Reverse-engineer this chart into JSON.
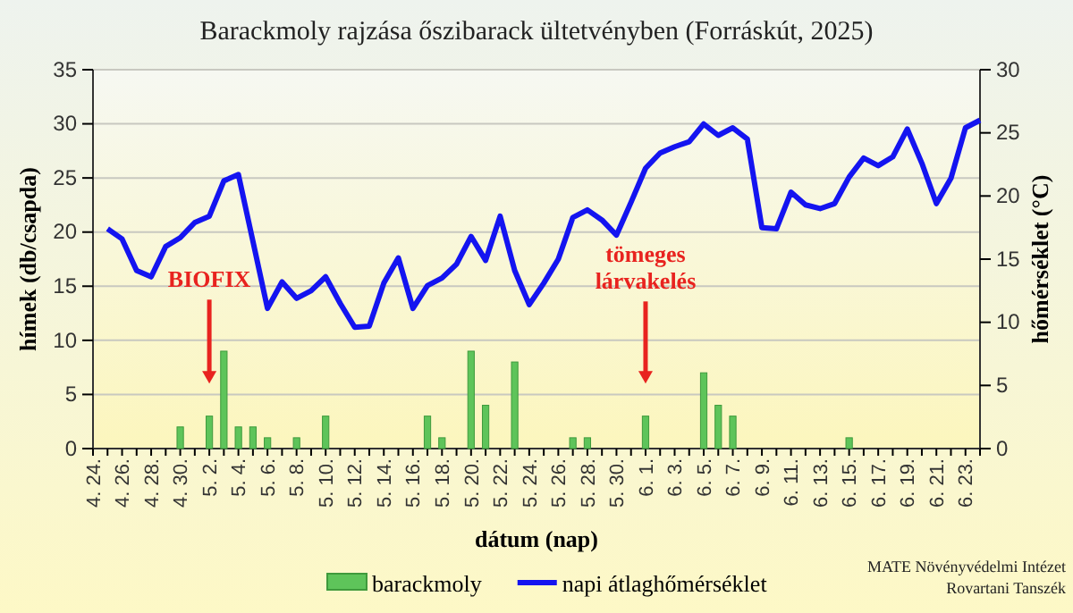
{
  "chart_data": {
    "type": "bar",
    "title": "Barackmoly rajzása őszibarack ültetvényben (Forráskút, 2025)",
    "xlabel": "dátum (nap)",
    "ylabel": "hímek (db/csapda)",
    "y2label": "hőmérséklet (°C)",
    "categories": [
      "4. 24.",
      null,
      "4. 26.",
      null,
      "4. 28.",
      null,
      "4. 30.",
      null,
      "5. 2.",
      null,
      "5. 4.",
      null,
      "5. 6.",
      null,
      "5. 8.",
      null,
      "5. 10.",
      null,
      "5. 12.",
      null,
      "5. 14.",
      null,
      "5. 16.",
      null,
      "5. 18.",
      null,
      "5. 20.",
      null,
      "5. 22.",
      null,
      "5. 24.",
      null,
      "5. 26.",
      null,
      "5. 28.",
      null,
      "5. 30.",
      null,
      "6. 1.",
      null,
      "6. 3.",
      null,
      "6. 5.",
      null,
      "6. 7.",
      null,
      "6. 9.",
      null,
      "6. 11.",
      null,
      "6. 13.",
      null,
      "6. 15.",
      null,
      "6. 17.",
      null,
      "6. 19.",
      null,
      "6. 21.",
      null,
      "6. 23.",
      null
    ],
    "series": [
      {
        "name": "barackmoly",
        "color": "#5ec45a",
        "values": [
          0,
          0,
          0,
          0,
          0,
          0,
          2,
          0,
          3,
          9,
          2,
          2,
          1,
          0,
          1,
          0,
          3,
          0,
          0,
          0,
          0,
          0,
          0,
          3,
          1,
          0,
          9,
          4,
          0,
          8,
          0,
          0,
          0,
          1,
          1,
          0,
          0,
          0,
          3,
          0,
          0,
          0,
          7,
          4,
          3,
          0,
          0,
          0,
          0,
          0,
          0,
          0,
          1,
          0,
          0,
          0,
          0,
          0,
          0,
          0,
          0,
          0
        ]
      },
      {
        "name": "napi átlaghőmérséklet",
        "type": "line",
        "axis": "y2",
        "color": "#1414f0",
        "values": [
          null,
          17.4,
          16.6,
          14.1,
          13.6,
          16.0,
          16.7,
          17.9,
          18.4,
          21.2,
          21.7,
          16.4,
          11.1,
          13.2,
          11.9,
          12.5,
          13.6,
          11.5,
          9.6,
          9.7,
          13.1,
          15.1,
          11.1,
          12.9,
          13.5,
          14.6,
          16.8,
          14.9,
          18.4,
          14.1,
          11.4,
          13.1,
          15.0,
          18.3,
          18.9,
          18.1,
          16.9,
          19.5,
          22.2,
          23.4,
          23.9,
          24.3,
          25.7,
          24.8,
          25.4,
          24.5,
          17.5,
          17.4,
          20.3,
          19.3,
          19.0,
          19.4,
          21.5,
          23.0,
          22.4,
          23.1,
          25.3,
          22.6,
          19.4,
          21.4,
          25.4,
          26.0
        ]
      }
    ],
    "ylim": [
      0,
      35
    ],
    "yticks": [
      0,
      5,
      10,
      15,
      20,
      25,
      30,
      35
    ],
    "y2lim": [
      0,
      30
    ],
    "y2ticks": [
      0,
      5,
      10,
      15,
      20,
      25,
      30
    ],
    "grid": "y",
    "legend": "bottom",
    "marker": "none",
    "line_style": "solid",
    "annotations": [
      "BIOFIX",
      "tömeges\nlárvakelés",
      "MATE Növényvédelmi Intézet\nRovartani Tanszék"
    ]
  }
}
